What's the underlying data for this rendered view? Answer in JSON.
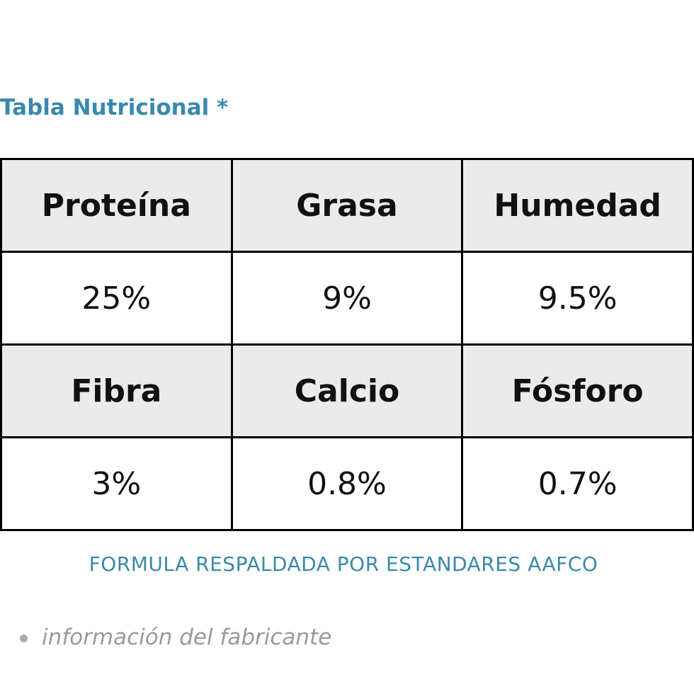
{
  "header": {
    "title": "Tabla Nutricional *"
  },
  "table": {
    "rows": [
      [
        "Proteína",
        "Grasa",
        "Humedad"
      ],
      [
        "25%",
        "9%",
        "9.5%"
      ],
      [
        "Fibra",
        "Calcio",
        "Fósforo"
      ],
      [
        "3%",
        "0.8%",
        "0.7%"
      ]
    ]
  },
  "footer": {
    "caption": "FORMULA RESPALDADA POR ESTANDARES AAFCO",
    "note": "información del fabricante"
  }
}
